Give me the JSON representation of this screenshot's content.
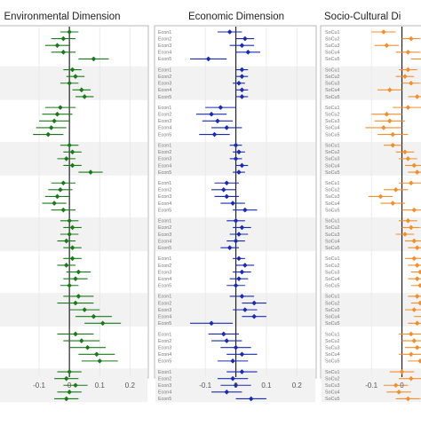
{
  "colors": {
    "environmental": "#1a7a1a",
    "economic": "#1a2bb0",
    "socio_cultural": "#f28e2b",
    "panel_border": "#b9b9b9",
    "band": "#f2f2f2",
    "zero_line": "#222222"
  },
  "chart_data": [
    {
      "type": "scatter",
      "subtype": "forest-plot (point estimate with interval)",
      "title": "Environmental Dimension",
      "xlim": [
        -0.15,
        0.24
      ],
      "xticks": [
        "-0.1",
        "0",
        "0.1",
        "0.2"
      ],
      "xtick_values": [
        -0.1,
        0,
        0.1,
        0.2
      ],
      "zero_line": 0,
      "grid": true,
      "legend": "none",
      "row_labels_note": "row labels cut off at left edge",
      "groups": [
        {
          "labels": [
            "",
            "",
            "",
            "",
            ""
          ],
          "estimates": [
            0.0,
            -0.02,
            -0.04,
            -0.02,
            0.08
          ],
          "lower": [
            -0.03,
            -0.06,
            -0.08,
            -0.06,
            0.03
          ],
          "upper": [
            0.03,
            0.02,
            0.0,
            0.02,
            0.13
          ]
        },
        {
          "labels": [
            "",
            "",
            "",
            "",
            ""
          ],
          "estimates": [
            0.01,
            0.02,
            0.0,
            0.04,
            0.05
          ],
          "lower": [
            -0.02,
            -0.01,
            -0.03,
            0.01,
            0.02
          ],
          "upper": [
            0.04,
            0.05,
            0.03,
            0.07,
            0.08
          ]
        },
        {
          "labels": [
            "",
            "",
            "",
            "",
            ""
          ],
          "estimates": [
            -0.03,
            -0.04,
            -0.05,
            -0.06,
            -0.07
          ],
          "lower": [
            -0.08,
            -0.09,
            -0.1,
            -0.11,
            -0.12
          ],
          "upper": [
            0.02,
            0.01,
            0.0,
            -0.01,
            -0.02
          ]
        },
        {
          "labels": [
            "",
            "",
            "",
            "",
            ""
          ],
          "estimates": [
            0.0,
            0.01,
            -0.01,
            0.01,
            0.07
          ],
          "lower": [
            -0.03,
            -0.02,
            -0.04,
            -0.02,
            0.03
          ],
          "upper": [
            0.03,
            0.04,
            0.02,
            0.04,
            0.11
          ]
        },
        {
          "labels": [
            "",
            "",
            "",
            "",
            ""
          ],
          "estimates": [
            -0.02,
            -0.03,
            -0.04,
            -0.05,
            -0.02
          ],
          "lower": [
            -0.06,
            -0.07,
            -0.08,
            -0.09,
            -0.06
          ],
          "upper": [
            0.02,
            0.01,
            0.0,
            -0.01,
            0.02
          ]
        },
        {
          "labels": [
            "",
            "",
            "",
            "",
            ""
          ],
          "estimates": [
            0.0,
            0.01,
            0.0,
            -0.01,
            0.01
          ],
          "lower": [
            -0.03,
            -0.02,
            -0.03,
            -0.04,
            -0.02
          ],
          "upper": [
            0.03,
            0.04,
            0.03,
            0.02,
            0.04
          ]
        },
        {
          "labels": [
            "",
            "",
            "",
            "",
            ""
          ],
          "estimates": [
            0.01,
            -0.01,
            0.03,
            0.02,
            0.0
          ],
          "lower": [
            -0.02,
            -0.04,
            -0.01,
            -0.02,
            -0.03
          ],
          "upper": [
            0.04,
            0.02,
            0.07,
            0.06,
            0.03
          ]
        },
        {
          "labels": [
            "",
            "",
            "",
            "",
            ""
          ],
          "estimates": [
            0.03,
            0.02,
            0.05,
            0.08,
            0.11
          ],
          "lower": [
            -0.02,
            -0.04,
            0.0,
            0.02,
            0.05
          ],
          "upper": [
            0.08,
            0.08,
            0.1,
            0.14,
            0.17
          ]
        },
        {
          "labels": [
            "",
            "",
            "",
            "",
            ""
          ],
          "estimates": [
            0.02,
            0.04,
            0.06,
            0.09,
            0.1
          ],
          "lower": [
            -0.04,
            -0.02,
            0.0,
            0.03,
            0.04
          ],
          "upper": [
            0.08,
            0.1,
            0.12,
            0.15,
            0.16
          ]
        },
        {
          "labels": [
            "",
            "",
            "",
            "",
            ""
          ],
          "estimates": [
            0.0,
            -0.01,
            0.02,
            0.0,
            -0.01
          ],
          "lower": [
            -0.04,
            -0.05,
            -0.02,
            -0.04,
            -0.05
          ],
          "upper": [
            0.04,
            0.03,
            0.06,
            0.04,
            0.03
          ]
        }
      ]
    },
    {
      "type": "scatter",
      "subtype": "forest-plot (point estimate with interval)",
      "title": "Economic Dimension",
      "xlim": [
        -0.15,
        0.24
      ],
      "xticks": [
        "-0.1",
        "0",
        "0.1",
        "0.2"
      ],
      "xtick_values": [
        -0.1,
        0,
        0.1,
        0.2
      ],
      "zero_line": 0,
      "grid": true,
      "legend": "none",
      "groups": [
        {
          "labels": [
            "Econ1",
            "Econ2",
            "Econ3",
            "Econ4",
            "Econ5"
          ],
          "estimates": [
            -0.02,
            0.03,
            0.02,
            0.04,
            -0.09
          ],
          "lower": [
            -0.06,
            0.0,
            -0.02,
            0.0,
            -0.15
          ],
          "upper": [
            0.02,
            0.06,
            0.06,
            0.08,
            -0.03
          ]
        },
        {
          "labels": [
            "Econ1",
            "Econ2",
            "Econ3",
            "Econ4",
            "Econ5"
          ],
          "estimates": [
            0.02,
            0.02,
            0.01,
            0.02,
            0.02
          ],
          "lower": [
            0.0,
            0.0,
            -0.01,
            0.0,
            0.0
          ],
          "upper": [
            0.04,
            0.04,
            0.03,
            0.04,
            0.04
          ]
        },
        {
          "labels": [
            "Econ1",
            "Econ2",
            "Econ3",
            "Econ4",
            "Econ5"
          ],
          "estimates": [
            -0.05,
            -0.08,
            -0.06,
            -0.03,
            -0.07
          ],
          "lower": [
            -0.1,
            -0.13,
            -0.11,
            -0.08,
            -0.12
          ],
          "upper": [
            0.0,
            -0.03,
            -0.01,
            0.02,
            -0.02
          ]
        },
        {
          "labels": [
            "Econ1",
            "Econ2",
            "Econ3",
            "Econ4",
            "Econ5"
          ],
          "estimates": [
            0.0,
            0.01,
            0.0,
            0.02,
            0.01
          ],
          "lower": [
            -0.02,
            -0.01,
            -0.02,
            0.0,
            -0.01
          ],
          "upper": [
            0.02,
            0.03,
            0.02,
            0.04,
            0.03
          ]
        },
        {
          "labels": [
            "Econ1",
            "Econ2",
            "Econ3",
            "Econ4",
            "Econ5"
          ],
          "estimates": [
            -0.03,
            -0.04,
            -0.03,
            -0.01,
            0.03
          ],
          "lower": [
            -0.07,
            -0.08,
            -0.07,
            -0.05,
            -0.01
          ],
          "upper": [
            0.01,
            0.0,
            0.01,
            0.03,
            0.07
          ]
        },
        {
          "labels": [
            "Econ1",
            "Econ2",
            "Econ3",
            "Econ4",
            "Econ5"
          ],
          "estimates": [
            0.0,
            0.02,
            0.01,
            0.0,
            -0.02
          ],
          "lower": [
            -0.03,
            -0.01,
            -0.02,
            -0.03,
            -0.05
          ],
          "upper": [
            0.03,
            0.05,
            0.04,
            0.03,
            0.01
          ]
        },
        {
          "labels": [
            "Econ1",
            "Econ2",
            "Econ3",
            "Econ4",
            "Econ5"
          ],
          "estimates": [
            0.01,
            0.03,
            0.02,
            0.01,
            0.0
          ],
          "lower": [
            -0.01,
            0.0,
            -0.01,
            -0.02,
            -0.03
          ],
          "upper": [
            0.03,
            0.06,
            0.05,
            0.04,
            0.03
          ]
        },
        {
          "labels": [
            "Econ1",
            "Econ2",
            "Econ3",
            "Econ4",
            "Econ5"
          ],
          "estimates": [
            0.02,
            0.06,
            0.03,
            0.06,
            -0.08
          ],
          "lower": [
            -0.02,
            0.02,
            -0.01,
            0.02,
            -0.15
          ],
          "upper": [
            0.06,
            0.1,
            0.07,
            0.1,
            -0.01
          ]
        },
        {
          "labels": [
            "Econ1",
            "Econ2",
            "Econ3",
            "Econ4",
            "Econ5"
          ],
          "estimates": [
            -0.04,
            -0.03,
            0.0,
            0.02,
            -0.01
          ],
          "lower": [
            -0.09,
            -0.08,
            -0.05,
            -0.03,
            -0.06
          ],
          "upper": [
            0.01,
            0.02,
            0.05,
            0.07,
            0.04
          ]
        },
        {
          "labels": [
            "Econ1",
            "Econ2",
            "Econ3",
            "Econ4",
            "Econ5"
          ],
          "estimates": [
            0.02,
            -0.01,
            0.0,
            -0.03,
            0.05
          ],
          "lower": [
            -0.03,
            -0.06,
            -0.05,
            -0.08,
            0.0
          ],
          "upper": [
            0.07,
            0.04,
            0.05,
            0.02,
            0.1
          ]
        }
      ]
    },
    {
      "type": "scatter",
      "subtype": "forest-plot (point estimate with interval)",
      "title": "Socio-Cultural Di",
      "xlim": [
        -0.15,
        0.08
      ],
      "xticks": [
        "-0.1",
        "0"
      ],
      "xtick_values": [
        -0.1,
        0
      ],
      "zero_line": 0,
      "grid": true,
      "legend": "none",
      "row_labels_note": "panel cut off at right edge",
      "groups": [
        {
          "labels": [
            "SoCu1",
            "SoCu2",
            "SuCu3",
            "SoCu4",
            "SoCu5"
          ],
          "estimates": [
            -0.06,
            0.03,
            -0.05,
            0.02,
            0.07
          ],
          "lower": [
            -0.1,
            0.0,
            -0.09,
            -0.02,
            0.03
          ],
          "upper": [
            -0.02,
            0.06,
            -0.01,
            0.06,
            0.1
          ]
        },
        {
          "labels": [
            "SoCu1",
            "SoCu2",
            "SuCu3",
            "SoCu4",
            "SoCu5"
          ],
          "estimates": [
            0.02,
            0.01,
            0.03,
            -0.04,
            0.05
          ],
          "lower": [
            -0.01,
            -0.02,
            0.0,
            -0.08,
            0.02
          ],
          "upper": [
            0.05,
            0.04,
            0.06,
            0.0,
            0.08
          ]
        },
        {
          "labels": [
            "SoCu1",
            "SoCu2",
            "SuCu3",
            "SoCu4",
            "SoCu5"
          ],
          "estimates": [
            0.02,
            -0.05,
            -0.04,
            -0.06,
            -0.03
          ],
          "lower": [
            -0.03,
            -0.1,
            -0.09,
            -0.12,
            -0.08
          ],
          "upper": [
            0.07,
            0.0,
            0.01,
            0.0,
            0.02
          ]
        },
        {
          "labels": [
            "SoCu1",
            "SoCu2",
            "SuCu3",
            "SoCu4",
            "SoCu5"
          ],
          "estimates": [
            -0.03,
            0.01,
            0.02,
            0.04,
            0.05
          ],
          "lower": [
            -0.06,
            -0.02,
            -0.01,
            0.01,
            0.02
          ],
          "upper": [
            0.0,
            0.04,
            0.05,
            0.07,
            0.08
          ]
        },
        {
          "labels": [
            "SoCu1",
            "SoCu2",
            "SuCu3",
            "SoCu4",
            "SoCu5"
          ],
          "estimates": [
            0.03,
            -0.02,
            -0.07,
            -0.03,
            0.04
          ],
          "lower": [
            -0.01,
            -0.06,
            -0.11,
            -0.07,
            0.0
          ],
          "upper": [
            0.07,
            0.02,
            -0.03,
            0.01,
            0.08
          ]
        },
        {
          "labels": [
            "SoCu1",
            "SoCu2",
            "SuCu3",
            "SoCu4",
            "SoCu5"
          ],
          "estimates": [
            0.02,
            0.03,
            0.01,
            0.04,
            0.05
          ],
          "lower": [
            -0.01,
            0.0,
            -0.02,
            0.01,
            0.02
          ],
          "upper": [
            0.05,
            0.06,
            0.04,
            0.07,
            0.08
          ]
        },
        {
          "labels": [
            "SoCu1",
            "SoCu2",
            "SuCu3",
            "SoCu4",
            "SoCu5"
          ],
          "estimates": [
            0.04,
            0.05,
            0.06,
            0.05,
            0.06
          ],
          "lower": [
            0.01,
            0.02,
            0.03,
            0.02,
            0.03
          ],
          "upper": [
            0.07,
            0.08,
            0.08,
            0.08,
            0.08
          ]
        },
        {
          "labels": [
            "SoCu1",
            "SoCu2",
            "SuCu3",
            "SoCu4",
            "SoCu5"
          ],
          "estimates": [
            0.05,
            0.06,
            0.04,
            0.07,
            0.05
          ],
          "lower": [
            0.02,
            0.03,
            0.01,
            0.04,
            0.02
          ],
          "upper": [
            0.08,
            0.08,
            0.07,
            0.08,
            0.08
          ]
        },
        {
          "labels": [
            "SoCu1",
            "SoCu2",
            "SuCu3",
            "SoCu4",
            "SoCu5"
          ],
          "estimates": [
            0.03,
            0.04,
            0.05,
            0.03,
            0.06
          ],
          "lower": [
            -0.01,
            0.0,
            0.01,
            -0.01,
            0.02
          ],
          "upper": [
            0.07,
            0.08,
            0.08,
            0.07,
            0.08
          ]
        },
        {
          "labels": [
            "SoCu1",
            "SoCu2",
            "SuCu3",
            "SoCu4",
            "SoCu5"
          ],
          "estimates": [
            0.0,
            0.03,
            -0.02,
            -0.01,
            0.02
          ],
          "lower": [
            -0.04,
            -0.01,
            -0.06,
            -0.05,
            -0.02
          ],
          "upper": [
            0.04,
            0.07,
            0.02,
            0.03,
            0.06
          ]
        }
      ]
    }
  ]
}
